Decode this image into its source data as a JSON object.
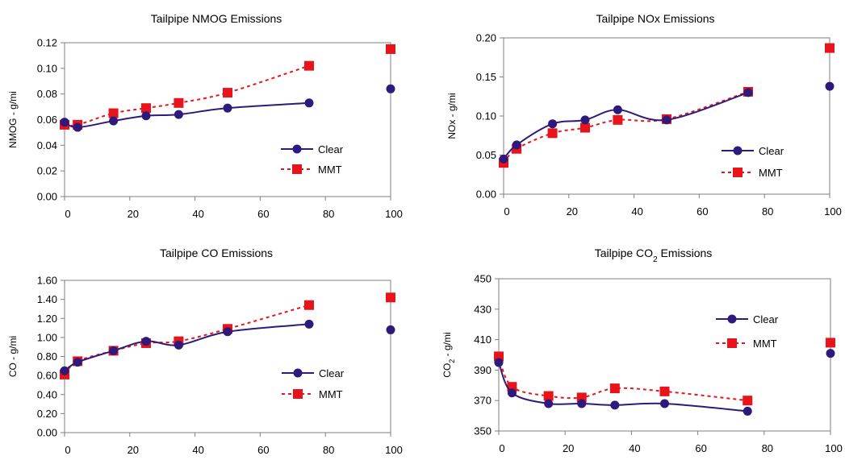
{
  "chart_data": [
    {
      "type": "line",
      "title": "Tailpipe NMOG Emissions",
      "title_sub": "",
      "title_suffix": "",
      "ylabel": "NMOG - g/mi",
      "ylabel_sub": "",
      "ylabel_suffix": "",
      "xlabel": "",
      "xlim": [
        0,
        100
      ],
      "ylim": [
        0,
        0.12
      ],
      "xticks": [
        0,
        20,
        40,
        60,
        80,
        100
      ],
      "yticks": [
        "0.00",
        "0.02",
        "0.04",
        "0.06",
        "0.08",
        "0.10",
        "0.12"
      ],
      "legend_position": "right-middle",
      "grid": false,
      "series": [
        {
          "name": "Clear",
          "color": "#2e1a7a",
          "marker": "circle",
          "style": "solid",
          "x": [
            0,
            4,
            15,
            25,
            35,
            50,
            75
          ],
          "y": [
            0.058,
            0.054,
            0.059,
            0.063,
            0.064,
            0.069,
            0.073
          ],
          "isolated": {
            "x": 100,
            "y": 0.084
          }
        },
        {
          "name": "MMT",
          "color": "#e8141b",
          "marker": "square",
          "style": "dashed",
          "x": [
            0,
            4,
            15,
            25,
            35,
            50,
            75
          ],
          "y": [
            0.056,
            0.056,
            0.065,
            0.069,
            0.073,
            0.081,
            0.102
          ],
          "isolated": {
            "x": 100,
            "y": 0.115
          }
        }
      ]
    },
    {
      "type": "line",
      "title": "Tailpipe NOx Emissions",
      "title_sub": "",
      "title_suffix": "",
      "ylabel": "NOx - g/mi",
      "ylabel_sub": "",
      "ylabel_suffix": "",
      "xlabel": "",
      "xlim": [
        0,
        100
      ],
      "ylim": [
        0,
        0.2
      ],
      "xticks": [
        0,
        20,
        40,
        60,
        80,
        100
      ],
      "yticks": [
        "0.00",
        "0.05",
        "0.10",
        "0.15",
        "0.20"
      ],
      "legend_position": "bottom-right",
      "grid": false,
      "series": [
        {
          "name": "Clear",
          "color": "#2e1a7a",
          "marker": "circle",
          "style": "solid",
          "x": [
            0,
            4,
            15,
            25,
            35,
            50,
            75
          ],
          "y": [
            0.045,
            0.063,
            0.09,
            0.095,
            0.108,
            0.095,
            0.13
          ],
          "isolated": {
            "x": 100,
            "y": 0.138
          }
        },
        {
          "name": "MMT",
          "color": "#e8141b",
          "marker": "square",
          "style": "dashed",
          "x": [
            0,
            4,
            15,
            25,
            35,
            50,
            75
          ],
          "y": [
            0.04,
            0.058,
            0.078,
            0.085,
            0.095,
            0.096,
            0.131
          ],
          "isolated": {
            "x": 100,
            "y": 0.187
          }
        }
      ]
    },
    {
      "type": "line",
      "title": "Tailpipe CO Emissions",
      "title_sub": "",
      "title_suffix": "",
      "ylabel": "CO - g/mi",
      "ylabel_sub": "",
      "ylabel_suffix": "",
      "xlabel": "",
      "xlim": [
        0,
        100
      ],
      "ylim": [
        0,
        1.6
      ],
      "xticks": [
        0,
        20,
        40,
        60,
        80,
        100
      ],
      "yticks": [
        "0.00",
        "0.20",
        "0.40",
        "0.60",
        "0.80",
        "1.00",
        "1.20",
        "1.40",
        "1.60"
      ],
      "legend_position": "bottom-right",
      "grid": false,
      "series": [
        {
          "name": "Clear",
          "color": "#2e1a7a",
          "marker": "circle",
          "style": "solid",
          "x": [
            0,
            4,
            15,
            25,
            35,
            50,
            75
          ],
          "y": [
            0.65,
            0.74,
            0.86,
            0.96,
            0.92,
            1.06,
            1.14
          ],
          "isolated": {
            "x": 100,
            "y": 1.08
          }
        },
        {
          "name": "MMT",
          "color": "#e8141b",
          "marker": "square",
          "style": "dashed",
          "x": [
            0,
            4,
            15,
            25,
            35,
            50,
            75
          ],
          "y": [
            0.61,
            0.75,
            0.86,
            0.94,
            0.96,
            1.09,
            1.34
          ],
          "isolated": {
            "x": 100,
            "y": 1.42
          }
        }
      ]
    },
    {
      "type": "line",
      "title": "Tailpipe CO",
      "title_sub": "2",
      "title_suffix": " Emissions",
      "ylabel": "CO",
      "ylabel_sub": "2",
      "ylabel_suffix": " - g/mi",
      "xlabel": "",
      "xlim": [
        0,
        100
      ],
      "ylim": [
        350,
        450
      ],
      "xticks": [
        0,
        20,
        40,
        60,
        80,
        100
      ],
      "yticks": [
        "350",
        "370",
        "390",
        "410",
        "430",
        "450"
      ],
      "legend_position": "top-right",
      "grid": false,
      "series": [
        {
          "name": "Clear",
          "color": "#2e1a7a",
          "marker": "circle",
          "style": "solid",
          "x": [
            0,
            4,
            15,
            25,
            35,
            50,
            75
          ],
          "y": [
            395,
            375,
            368,
            368,
            367,
            368,
            363
          ],
          "isolated": {
            "x": 100,
            "y": 401
          }
        },
        {
          "name": "MMT",
          "color": "#e8141b",
          "marker": "square",
          "style": "dashed",
          "x": [
            0,
            4,
            15,
            25,
            35,
            50,
            75
          ],
          "y": [
            399,
            379,
            373,
            372,
            378,
            376,
            370
          ],
          "isolated": {
            "x": 100,
            "y": 408
          }
        }
      ]
    }
  ]
}
